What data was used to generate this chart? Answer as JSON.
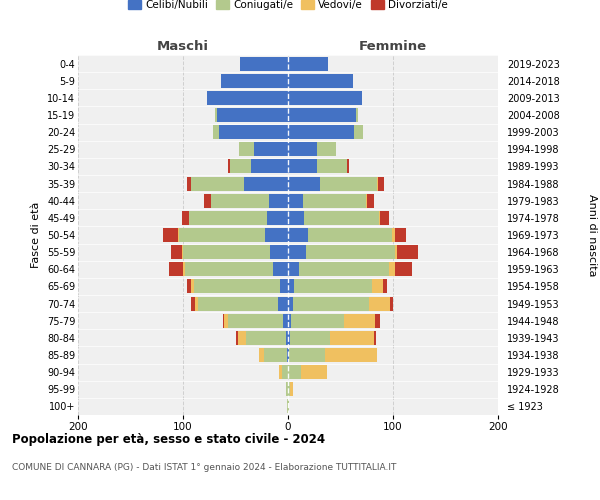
{
  "age_groups": [
    "100+",
    "95-99",
    "90-94",
    "85-89",
    "80-84",
    "75-79",
    "70-74",
    "65-69",
    "60-64",
    "55-59",
    "50-54",
    "45-49",
    "40-44",
    "35-39",
    "30-34",
    "25-29",
    "20-24",
    "15-19",
    "10-14",
    "5-9",
    "0-4"
  ],
  "birth_years": [
    "≤ 1923",
    "1924-1928",
    "1929-1933",
    "1934-1938",
    "1939-1943",
    "1944-1948",
    "1949-1953",
    "1954-1958",
    "1959-1963",
    "1964-1968",
    "1969-1973",
    "1974-1978",
    "1979-1983",
    "1984-1988",
    "1989-1993",
    "1994-1998",
    "1999-2003",
    "2004-2008",
    "2009-2013",
    "2014-2018",
    "2019-2023"
  ],
  "maschi": {
    "celibi": [
      0,
      0,
      0,
      1,
      2,
      5,
      10,
      8,
      14,
      17,
      22,
      20,
      18,
      42,
      35,
      32,
      66,
      68,
      77,
      64,
      46
    ],
    "coniugati": [
      1,
      2,
      6,
      22,
      38,
      52,
      76,
      82,
      84,
      83,
      82,
      74,
      55,
      50,
      20,
      15,
      5,
      2,
      0,
      0,
      0
    ],
    "vedovi": [
      0,
      0,
      3,
      5,
      8,
      4,
      3,
      2,
      2,
      1,
      1,
      0,
      0,
      0,
      0,
      0,
      0,
      0,
      0,
      0,
      0
    ],
    "divorziati": [
      0,
      0,
      0,
      0,
      2,
      1,
      3,
      4,
      13,
      10,
      14,
      7,
      7,
      4,
      2,
      0,
      0,
      0,
      0,
      0,
      0
    ]
  },
  "femmine": {
    "nubili": [
      0,
      0,
      0,
      1,
      2,
      3,
      5,
      6,
      10,
      17,
      19,
      15,
      14,
      30,
      28,
      28,
      63,
      65,
      70,
      62,
      38
    ],
    "coniugate": [
      1,
      2,
      12,
      34,
      38,
      50,
      72,
      74,
      86,
      85,
      80,
      72,
      60,
      55,
      28,
      18,
      8,
      2,
      0,
      0,
      0
    ],
    "vedove": [
      0,
      3,
      25,
      50,
      42,
      30,
      20,
      10,
      6,
      2,
      3,
      1,
      1,
      1,
      0,
      0,
      0,
      0,
      0,
      0,
      0
    ],
    "divorziate": [
      0,
      0,
      0,
      0,
      2,
      5,
      3,
      4,
      16,
      20,
      10,
      8,
      7,
      5,
      2,
      0,
      0,
      0,
      0,
      0,
      0
    ]
  },
  "colors": {
    "celibi": "#4472c4",
    "coniugati": "#b3c98d",
    "vedovi": "#f0c060",
    "divorziati": "#c0392b"
  },
  "xlim": [
    -200,
    200
  ],
  "xticks": [
    -200,
    -100,
    0,
    100,
    200
  ],
  "xticklabels": [
    "200",
    "100",
    "0",
    "100",
    "200"
  ],
  "title": "Popolazione per età, sesso e stato civile - 2024",
  "subtitle": "COMUNE DI CANNARA (PG) - Dati ISTAT 1° gennaio 2024 - Elaborazione TUTTITALIA.IT",
  "ylabel_left": "Fasce di età",
  "ylabel_right": "Anni di nascita",
  "label_maschi": "Maschi",
  "label_femmine": "Femmine",
  "legend_labels": [
    "Celibi/Nubili",
    "Coniugati/e",
    "Vedovi/e",
    "Divorziati/e"
  ],
  "bg_color": "#f0f0f0",
  "grid_color": "#cccccc"
}
